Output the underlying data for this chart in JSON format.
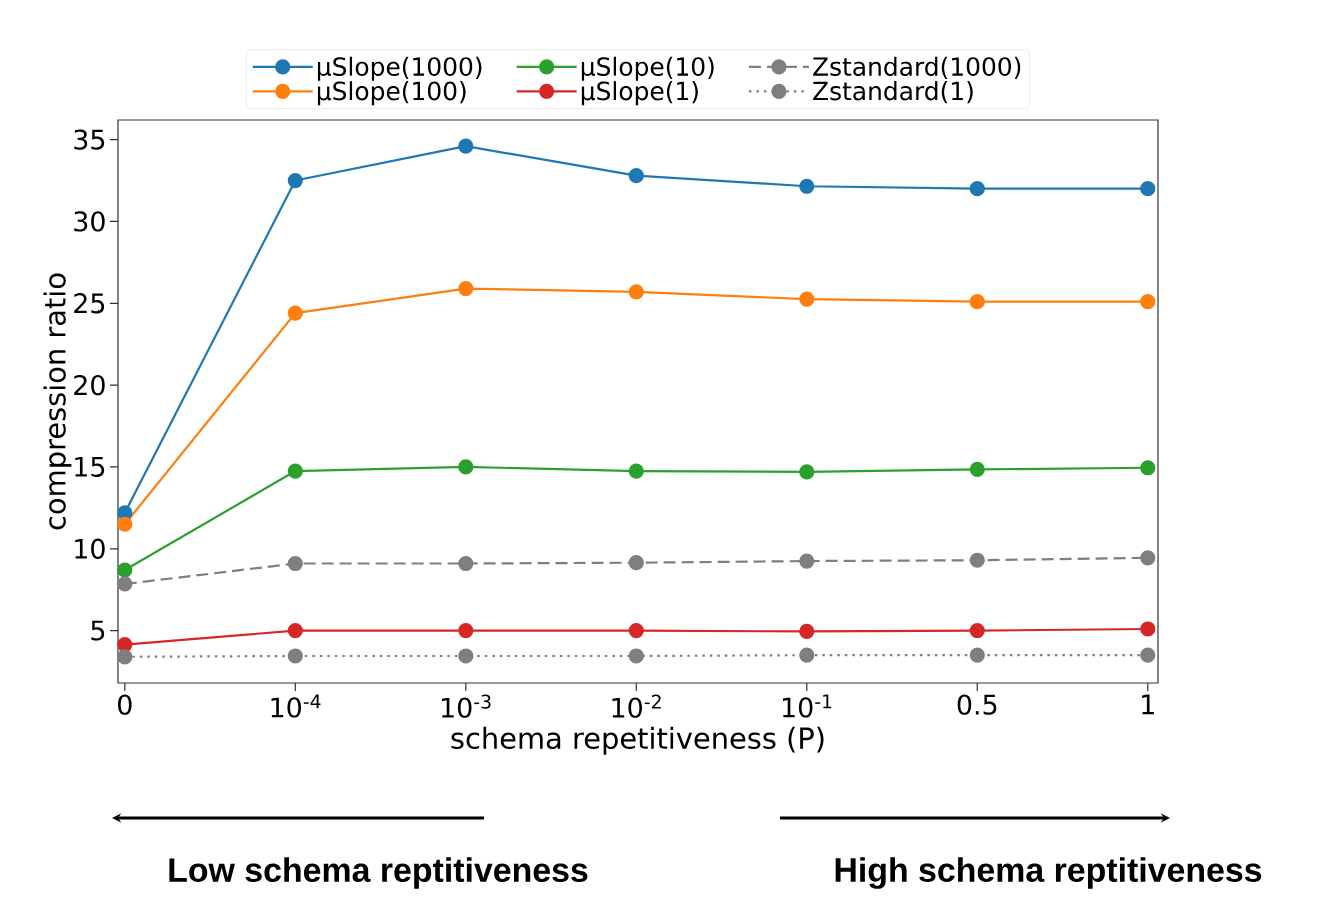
{
  "chart_data": {
    "type": "line",
    "xlabel": "schema repetitiveness (P)",
    "ylabel": "compression ratio",
    "categories": [
      "0",
      "10$^{-4}$",
      "10$^{-3}$",
      "10$^{-2}$",
      "10$^{-1}$",
      "0.5",
      "1"
    ],
    "ylim": [
      1.8,
      36.2
    ],
    "yticks": [
      5,
      10,
      15,
      20,
      25,
      30,
      35
    ],
    "marker": "circle",
    "legend": "top",
    "series": [
      {
        "name": "μSlope(1000)",
        "color": "#1f77b4",
        "line_style": "solid",
        "values": [
          12.2,
          32.5,
          34.6,
          32.8,
          32.15,
          32.0,
          32.0
        ]
      },
      {
        "name": "μSlope(100)",
        "color": "#ff7f0e",
        "line_style": "solid",
        "values": [
          11.5,
          24.4,
          25.9,
          25.7,
          25.25,
          25.1,
          25.1
        ]
      },
      {
        "name": "μSlope(10)",
        "color": "#2ca02c",
        "line_style": "solid",
        "values": [
          8.7,
          14.75,
          15.0,
          14.75,
          14.7,
          14.85,
          14.95
        ]
      },
      {
        "name": "μSlope(1)",
        "color": "#d62728",
        "line_style": "solid",
        "values": [
          4.15,
          5.0,
          5.0,
          5.0,
          4.95,
          5.0,
          5.1
        ]
      },
      {
        "name": "Zstandard(1000)",
        "color": "#7f7f7f",
        "line_style": "dashed",
        "values": [
          7.85,
          9.1,
          9.1,
          9.15,
          9.25,
          9.3,
          9.45
        ]
      },
      {
        "name": "Zstandard(1)",
        "color": "#7f7f7f",
        "line_style": "dotted",
        "values": [
          3.4,
          3.45,
          3.45,
          3.45,
          3.5,
          3.5,
          3.5
        ]
      }
    ],
    "annotations": [
      "Low schema reptitiveness",
      "High schema reptitiveness"
    ]
  }
}
